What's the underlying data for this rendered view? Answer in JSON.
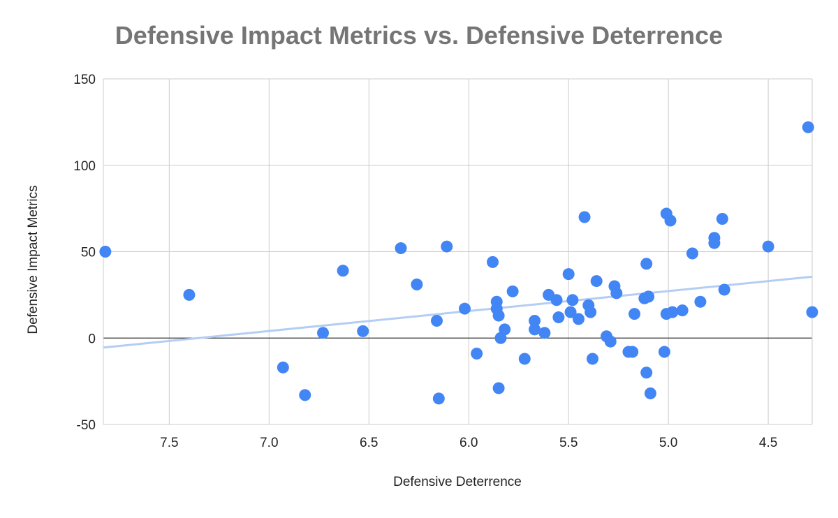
{
  "chart_data": {
    "type": "scatter",
    "title": "Defensive Impact Metrics vs. Defensive Deterrence",
    "xlabel": "Defensive Deterrence",
    "ylabel": "Defensive Impact Metrics",
    "x_reversed": true,
    "xlim": [
      7.83,
      4.28
    ],
    "ylim": [
      -50,
      150
    ],
    "x_ticks": [
      "7.5",
      "7.0",
      "6.5",
      "6.0",
      "5.5",
      "5.0",
      "4.5"
    ],
    "y_ticks": [
      "150",
      "100",
      "50",
      "0",
      "-50"
    ],
    "grid": true,
    "legend": "none",
    "colors": {
      "points": "#4285f4",
      "trendline": "#b3cdf5",
      "grid": "#cccccc",
      "zero_line": "#333333"
    },
    "trendline": {
      "x": [
        7.83,
        4.28
      ],
      "y": [
        -5.5,
        35.5
      ]
    },
    "series": [
      {
        "x": [
          7.82,
          7.4,
          6.93,
          6.82,
          6.73,
          6.63,
          6.53,
          6.34,
          6.26,
          6.16,
          6.15,
          6.11,
          6.02,
          5.96,
          5.88,
          5.86,
          5.86,
          5.85,
          5.85,
          5.84,
          5.82,
          5.78,
          5.72,
          5.67,
          5.67,
          5.62,
          5.6,
          5.56,
          5.55,
          5.5,
          5.49,
          5.48,
          5.45,
          5.42,
          5.39,
          5.4,
          5.38,
          5.36,
          5.31,
          5.29,
          5.27,
          5.26,
          5.2,
          5.18,
          5.17,
          5.12,
          5.11,
          5.11,
          5.1,
          5.09,
          5.1,
          5.02,
          5.01,
          5.01,
          4.99,
          4.98,
          4.93,
          4.88,
          4.84,
          4.77,
          4.77,
          4.73,
          4.72,
          4.5,
          4.3,
          4.28
        ],
        "y": [
          50,
          25,
          -17,
          -33,
          3,
          39,
          4,
          52,
          31,
          10,
          -35,
          53,
          17,
          -9,
          44,
          17,
          21,
          13,
          -29,
          0,
          5,
          27,
          -12,
          10,
          5,
          3,
          25,
          22,
          12,
          37,
          15,
          22,
          11,
          70,
          15,
          19,
          -12,
          33,
          1,
          -2,
          30,
          26,
          -8,
          -8,
          14,
          23,
          43,
          -20,
          24,
          -32,
          24,
          -8,
          14,
          72,
          68,
          15,
          16,
          49,
          21,
          58,
          55,
          69,
          28,
          53,
          122,
          15
        ]
      }
    ]
  }
}
